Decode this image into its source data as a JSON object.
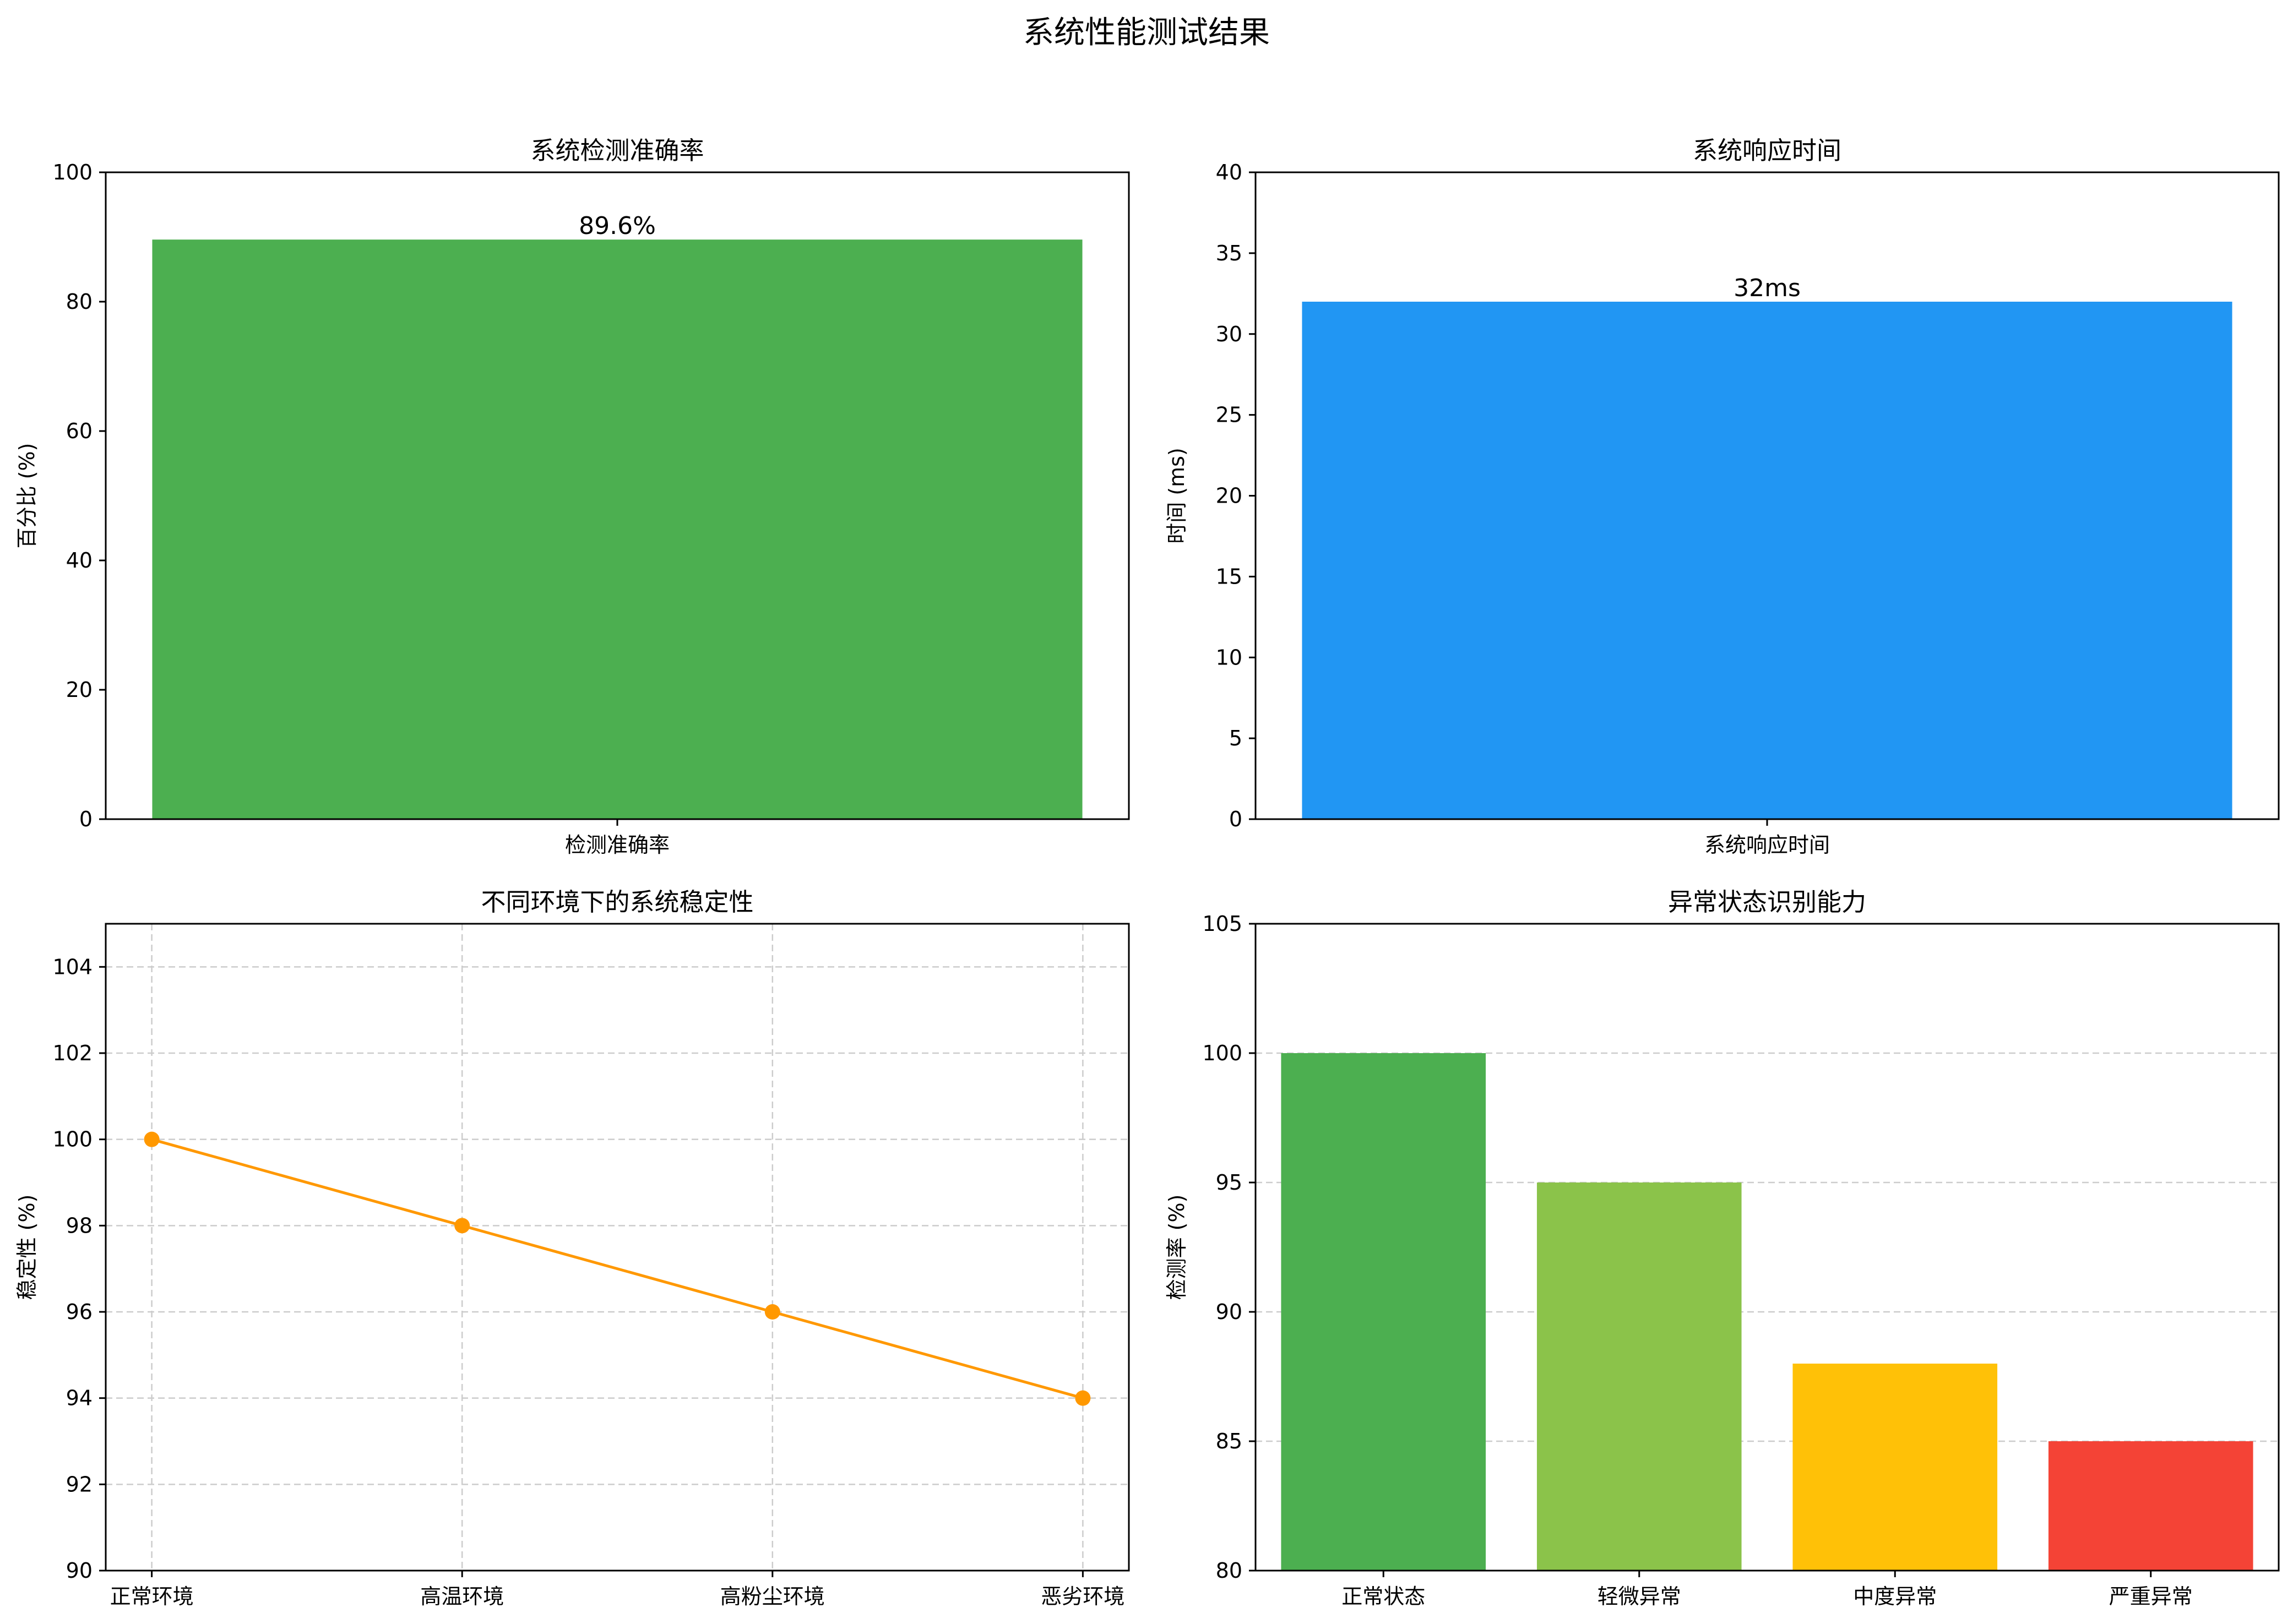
{
  "figure": {
    "title": "系统性能测试结果"
  },
  "chart_data": [
    {
      "type": "bar",
      "title": "系统检测准确率",
      "xlabel": "",
      "ylabel": "百分比 (%)",
      "categories": [
        "检测准确率"
      ],
      "values": [
        89.6
      ],
      "data_labels": [
        "89.6%"
      ],
      "ylim": [
        0,
        100
      ],
      "yticks": [
        0,
        20,
        40,
        60,
        80,
        100
      ],
      "grid": false,
      "colors": [
        "#4caf50"
      ]
    },
    {
      "type": "bar",
      "title": "系统响应时间",
      "xlabel": "",
      "ylabel": "时间 (ms)",
      "categories": [
        "系统响应时间"
      ],
      "values": [
        32
      ],
      "data_labels": [
        "32ms"
      ],
      "ylim": [
        0,
        40
      ],
      "yticks": [
        0,
        5,
        10,
        15,
        20,
        25,
        30,
        35,
        40
      ],
      "grid": false,
      "colors": [
        "#2196f3"
      ]
    },
    {
      "type": "line",
      "title": "不同环境下的系统稳定性",
      "xlabel": "",
      "ylabel": "稳定性 (%)",
      "categories": [
        "正常环境",
        "高温环境",
        "高粉尘环境",
        "恶劣环境"
      ],
      "values": [
        100,
        98,
        96,
        94
      ],
      "ylim": [
        90,
        105
      ],
      "yticks": [
        90,
        92,
        94,
        96,
        98,
        100,
        102,
        104
      ],
      "grid": true,
      "colors": [
        "#ff9800"
      ]
    },
    {
      "type": "bar",
      "title": "异常状态识别能力",
      "xlabel": "",
      "ylabel": "检测率 (%)",
      "categories": [
        "正常状态",
        "轻微异常",
        "中度异常",
        "严重异常"
      ],
      "values": [
        100,
        95,
        88,
        85
      ],
      "ylim": [
        80,
        105
      ],
      "yticks": [
        80,
        85,
        90,
        95,
        100,
        105
      ],
      "grid": "y",
      "colors": [
        "#4caf50",
        "#8bc34a",
        "#ffc107",
        "#f44336"
      ]
    }
  ]
}
